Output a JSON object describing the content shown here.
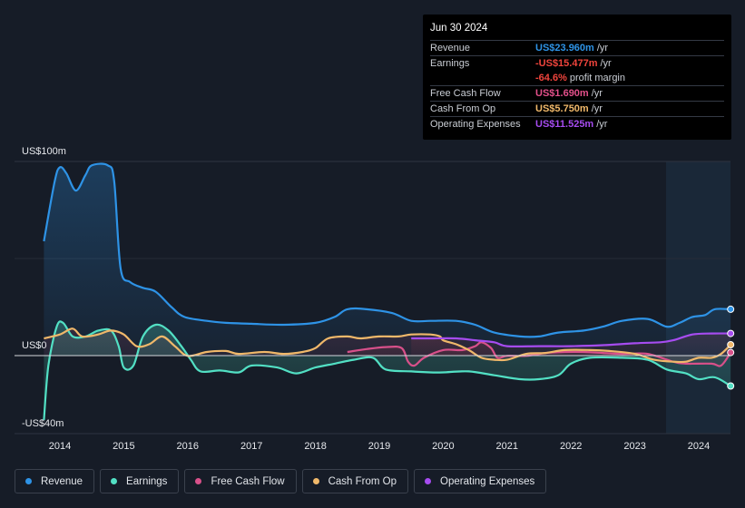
{
  "tooltip": {
    "date": "Jun 30 2024",
    "rows": [
      {
        "label": "Revenue",
        "value": "US$23.960m",
        "unit": "/yr",
        "color": "#2e93e6"
      },
      {
        "label": "Earnings",
        "value": "-US$15.477m",
        "unit": "/yr",
        "color": "#f0443c"
      },
      {
        "label": "",
        "value": "-64.6%",
        "unit": "profit margin",
        "color": "#f0443c"
      },
      {
        "label": "Free Cash Flow",
        "value": "US$1.690m",
        "unit": "/yr",
        "color": "#e3508a"
      },
      {
        "label": "Cash From Op",
        "value": "US$5.750m",
        "unit": "/yr",
        "color": "#f0b86a"
      },
      {
        "label": "Operating Expenses",
        "value": "US$11.525m",
        "unit": "/yr",
        "color": "#a64cf0"
      }
    ]
  },
  "legend": [
    {
      "label": "Revenue",
      "color": "#2e93e6"
    },
    {
      "label": "Earnings",
      "color": "#52e0c4"
    },
    {
      "label": "Free Cash Flow",
      "color": "#d8508a"
    },
    {
      "label": "Cash From Op",
      "color": "#f0b86a"
    },
    {
      "label": "Operating Expenses",
      "color": "#a64cf0"
    }
  ],
  "chart_data": {
    "type": "line",
    "title": "",
    "ylabel_top": "US$100m",
    "ylabel_zero": "US$0",
    "ylabel_bottom": "-US$40m",
    "ylim": [
      -40,
      100
    ],
    "xlim": [
      2013.25,
      2024.5
    ],
    "x_ticks": [
      "2014",
      "2015",
      "2016",
      "2017",
      "2018",
      "2019",
      "2020",
      "2021",
      "2022",
      "2023",
      "2024"
    ],
    "forecast_shade_start": 2023.5,
    "series": [
      {
        "name": "Revenue",
        "color": "#2e93e6",
        "points": [
          [
            2013.75,
            59
          ],
          [
            2013.92,
            90
          ],
          [
            2014.0,
            97
          ],
          [
            2014.1,
            94
          ],
          [
            2014.25,
            85
          ],
          [
            2014.4,
            93
          ],
          [
            2014.5,
            98
          ],
          [
            2014.75,
            98
          ],
          [
            2014.85,
            90
          ],
          [
            2014.95,
            45
          ],
          [
            2015.1,
            38
          ],
          [
            2015.3,
            35
          ],
          [
            2015.5,
            33
          ],
          [
            2015.75,
            25
          ],
          [
            2015.95,
            20
          ],
          [
            2016.3,
            18
          ],
          [
            2016.6,
            17
          ],
          [
            2017.0,
            16.5
          ],
          [
            2017.5,
            16
          ],
          [
            2018.0,
            17
          ],
          [
            2018.3,
            20
          ],
          [
            2018.5,
            24
          ],
          [
            2018.8,
            24
          ],
          [
            2019.2,
            22
          ],
          [
            2019.5,
            18
          ],
          [
            2019.8,
            18
          ],
          [
            2020.2,
            18
          ],
          [
            2020.5,
            16
          ],
          [
            2020.8,
            12
          ],
          [
            2021.2,
            10
          ],
          [
            2021.5,
            10
          ],
          [
            2021.8,
            12
          ],
          [
            2022.2,
            13
          ],
          [
            2022.5,
            15
          ],
          [
            2022.8,
            18
          ],
          [
            2023.2,
            19
          ],
          [
            2023.5,
            15
          ],
          [
            2023.7,
            17
          ],
          [
            2023.9,
            20
          ],
          [
            2024.1,
            21
          ],
          [
            2024.25,
            24
          ],
          [
            2024.5,
            24
          ]
        ]
      },
      {
        "name": "Earnings",
        "color": "#52e0c4",
        "points": [
          [
            2013.75,
            -33
          ],
          [
            2013.82,
            -5
          ],
          [
            2013.95,
            15
          ],
          [
            2014.05,
            17
          ],
          [
            2014.2,
            10
          ],
          [
            2014.4,
            10
          ],
          [
            2014.6,
            13
          ],
          [
            2014.8,
            13
          ],
          [
            2014.92,
            5
          ],
          [
            2015.0,
            -6
          ],
          [
            2015.15,
            -5
          ],
          [
            2015.3,
            10
          ],
          [
            2015.5,
            16
          ],
          [
            2015.7,
            13
          ],
          [
            2015.9,
            5
          ],
          [
            2016.05,
            -2
          ],
          [
            2016.2,
            -8
          ],
          [
            2016.5,
            -7.5
          ],
          [
            2016.8,
            -8.5
          ],
          [
            2017.0,
            -5
          ],
          [
            2017.4,
            -6
          ],
          [
            2017.7,
            -9
          ],
          [
            2018.0,
            -6
          ],
          [
            2018.3,
            -4
          ],
          [
            2018.6,
            -2
          ],
          [
            2018.9,
            -1
          ],
          [
            2019.1,
            -7
          ],
          [
            2019.5,
            -8
          ],
          [
            2019.8,
            -8.5
          ],
          [
            2020.0,
            -8.5
          ],
          [
            2020.4,
            -8
          ],
          [
            2020.8,
            -10
          ],
          [
            2021.2,
            -12
          ],
          [
            2021.5,
            -12
          ],
          [
            2021.8,
            -10
          ],
          [
            2022.0,
            -4
          ],
          [
            2022.3,
            -1
          ],
          [
            2022.8,
            -1
          ],
          [
            2023.2,
            -2
          ],
          [
            2023.5,
            -7
          ],
          [
            2023.8,
            -9
          ],
          [
            2024.0,
            -12
          ],
          [
            2024.25,
            -11
          ],
          [
            2024.5,
            -15.5
          ]
        ]
      },
      {
        "name": "Free Cash Flow",
        "color": "#d8508a",
        "points": [
          [
            2018.5,
            2
          ],
          [
            2018.8,
            3.5
          ],
          [
            2019.1,
            4.5
          ],
          [
            2019.35,
            4
          ],
          [
            2019.45,
            -3
          ],
          [
            2019.55,
            -5
          ],
          [
            2019.7,
            -1
          ],
          [
            2020.0,
            3
          ],
          [
            2020.3,
            3
          ],
          [
            2020.5,
            5
          ],
          [
            2020.6,
            7
          ],
          [
            2020.75,
            4
          ],
          [
            2020.85,
            -1
          ],
          [
            2021.0,
            0
          ],
          [
            2021.3,
            0
          ],
          [
            2021.6,
            1.5
          ],
          [
            2021.9,
            2
          ],
          [
            2022.2,
            2
          ],
          [
            2022.5,
            1.5
          ],
          [
            2022.8,
            1
          ],
          [
            2023.2,
            1
          ],
          [
            2023.6,
            -3
          ],
          [
            2023.8,
            -4
          ],
          [
            2024.2,
            -4
          ],
          [
            2024.35,
            -5
          ],
          [
            2024.5,
            1.7
          ]
        ]
      },
      {
        "name": "Cash From Op",
        "color": "#f0b86a",
        "points": [
          [
            2013.75,
            9
          ],
          [
            2014.0,
            11
          ],
          [
            2014.2,
            14
          ],
          [
            2014.35,
            10
          ],
          [
            2014.6,
            11
          ],
          [
            2014.8,
            13
          ],
          [
            2015.0,
            11
          ],
          [
            2015.2,
            5
          ],
          [
            2015.4,
            6
          ],
          [
            2015.6,
            10
          ],
          [
            2015.8,
            5
          ],
          [
            2016.0,
            0
          ],
          [
            2016.3,
            2
          ],
          [
            2016.6,
            2.5
          ],
          [
            2016.8,
            1
          ],
          [
            2017.2,
            2
          ],
          [
            2017.5,
            1
          ],
          [
            2017.8,
            2
          ],
          [
            2018.0,
            4
          ],
          [
            2018.2,
            9
          ],
          [
            2018.5,
            10
          ],
          [
            2018.7,
            9
          ],
          [
            2019.0,
            10
          ],
          [
            2019.3,
            10
          ],
          [
            2019.5,
            11
          ],
          [
            2019.8,
            11
          ],
          [
            2019.95,
            10
          ],
          [
            2020.0,
            8
          ],
          [
            2020.2,
            6
          ],
          [
            2020.4,
            3
          ],
          [
            2020.6,
            -1
          ],
          [
            2020.8,
            -2
          ],
          [
            2021.0,
            -2
          ],
          [
            2021.3,
            1
          ],
          [
            2021.6,
            1.5
          ],
          [
            2021.9,
            3
          ],
          [
            2022.3,
            3
          ],
          [
            2022.6,
            2.5
          ],
          [
            2023.0,
            1
          ],
          [
            2023.3,
            -2
          ],
          [
            2023.6,
            -3
          ],
          [
            2023.8,
            -3
          ],
          [
            2024.0,
            -1
          ],
          [
            2024.2,
            -1
          ],
          [
            2024.35,
            1
          ],
          [
            2024.5,
            5.75
          ]
        ]
      },
      {
        "name": "Operating Expenses",
        "color": "#a64cf0",
        "points": [
          [
            2019.5,
            9
          ],
          [
            2019.8,
            9
          ],
          [
            2020.2,
            9
          ],
          [
            2020.5,
            8
          ],
          [
            2020.8,
            7
          ],
          [
            2021.0,
            5
          ],
          [
            2021.5,
            5
          ],
          [
            2022.0,
            5
          ],
          [
            2022.5,
            5.5
          ],
          [
            2023.0,
            6.5
          ],
          [
            2023.4,
            7
          ],
          [
            2023.6,
            8
          ],
          [
            2023.9,
            11
          ],
          [
            2024.2,
            11.5
          ],
          [
            2024.5,
            11.5
          ]
        ]
      }
    ]
  }
}
